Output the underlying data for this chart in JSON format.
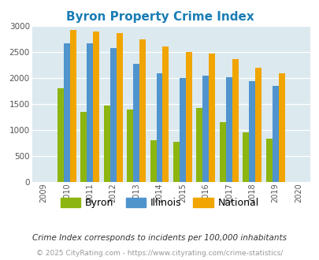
{
  "title": "Byron Property Crime Index",
  "plot_years": [
    2010,
    2011,
    2012,
    2013,
    2014,
    2015,
    2016,
    2017,
    2018,
    2019
  ],
  "byron": [
    1800,
    1350,
    1475,
    1400,
    800,
    780,
    1420,
    1150,
    960,
    830
  ],
  "illinois": [
    2670,
    2670,
    2580,
    2280,
    2090,
    2000,
    2050,
    2010,
    1940,
    1850
  ],
  "national": [
    2930,
    2900,
    2860,
    2740,
    2610,
    2500,
    2470,
    2370,
    2190,
    2090
  ],
  "byron_color": "#8db510",
  "illinois_color": "#4f94cd",
  "national_color": "#f0a500",
  "bg_color": "#dce9ef",
  "ylim": [
    0,
    3000
  ],
  "yticks": [
    0,
    500,
    1000,
    1500,
    2000,
    2500,
    3000
  ],
  "all_xtick_years": [
    2009,
    2010,
    2011,
    2012,
    2013,
    2014,
    2015,
    2016,
    2017,
    2018,
    2019,
    2020
  ],
  "legend_labels": [
    "Byron",
    "Illinois",
    "National"
  ],
  "footnote1": "Crime Index corresponds to incidents per 100,000 inhabitants",
  "footnote2": "© 2025 CityRating.com - https://www.cityrating.com/crime-statistics/",
  "bar_width": 0.27,
  "title_color": "#1a7db5",
  "title_fontsize": 11,
  "footnote1_color": "#333333",
  "footnote2_color": "#999999"
}
